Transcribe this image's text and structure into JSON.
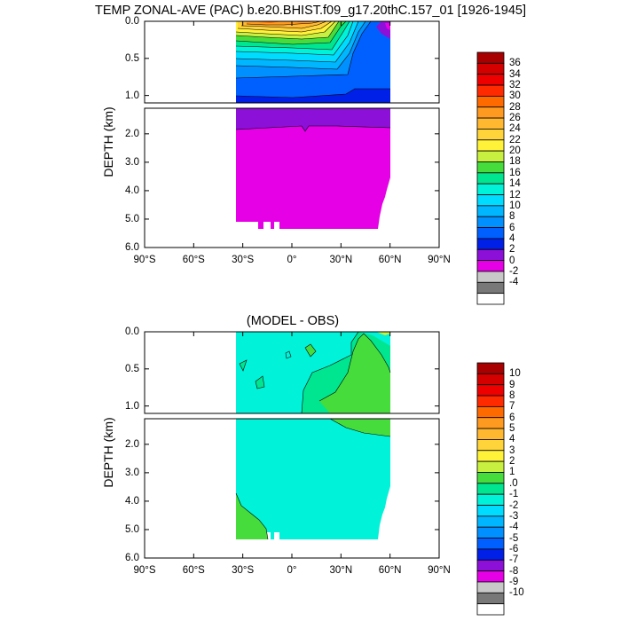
{
  "main_title": "TEMP ZONAL-AVE (PAC) b.e20.BHIST.f09_g17.20thC.157_01 [1926-1945]",
  "diff_title": "(MODEL - OBS)",
  "chart_data": [
    {
      "type": "heatmap",
      "title": "TEMP ZONAL-AVE (PAC) b.e20.BHIST.f09_g17.20thC.157_01 [1926-1945]",
      "ylabel": "DEPTH (km)",
      "xlabel": "",
      "x_ticks": [
        "90°S",
        "60°S",
        "30°S",
        "0°",
        "30°N",
        "60°N",
        "90°N"
      ],
      "x_values": [
        -90,
        -60,
        -30,
        0,
        30,
        60,
        90
      ],
      "xlim": [
        -90,
        90
      ],
      "y_ticks_upper": [
        "0.0",
        "0.5",
        "1.0"
      ],
      "y_ticks_upper_values": [
        0,
        0.5,
        1.0
      ],
      "y_ticks_lower": [
        "2.0",
        "3.0",
        "4.0",
        "5.0",
        "6.0"
      ],
      "y_ticks_lower_values": [
        2,
        3,
        4,
        5,
        6
      ],
      "ylim_upper": [
        0,
        1.1
      ],
      "ylim_lower": [
        1.1,
        6.0
      ],
      "ocean_extent": {
        "lat_south": -33,
        "lat_north": 62,
        "max_depth": 5.35
      },
      "colorbar_labels": [
        "36",
        "34",
        "32",
        "30",
        "28",
        "26",
        "24",
        "22",
        "20",
        "18",
        "16",
        "14",
        "12",
        "10",
        "8",
        "6",
        "4",
        "2",
        "0",
        "-2",
        "-4"
      ],
      "colorbar_colors": [
        "#a80000",
        "#d40000",
        "#ef0000",
        "#ff2a00",
        "#ff6a00",
        "#ff9a20",
        "#ffb830",
        "#ffd43a",
        "#fff238",
        "#c8f040",
        "#46dc3c",
        "#00e690",
        "#00f2d8",
        "#00dcff",
        "#00b6ff",
        "#0090ff",
        "#0060ff",
        "#0020e8",
        "#8c10d8",
        "#e600e6",
        "#c8c8c8",
        "#787878",
        "#ffffff"
      ],
      "profile_by_depth": [
        {
          "depth": 0.0,
          "temp_range": [
            18,
            30
          ]
        },
        {
          "depth": 0.5,
          "temp_range": [
            6,
            10
          ]
        },
        {
          "depth": 1.0,
          "temp_range": [
            2,
            6
          ]
        },
        {
          "depth": 2.0,
          "temp_range": [
            0,
            2
          ]
        },
        {
          "depth": 5.0,
          "temp_range": [
            0,
            2
          ]
        }
      ]
    },
    {
      "type": "heatmap",
      "title": "(MODEL - OBS)",
      "ylabel": "DEPTH (km)",
      "xlabel": "",
      "x_ticks": [
        "90°S",
        "60°S",
        "30°S",
        "0°",
        "30°N",
        "60°N",
        "90°N"
      ],
      "x_values": [
        -90,
        -60,
        -30,
        0,
        30,
        60,
        90
      ],
      "xlim": [
        -90,
        90
      ],
      "y_ticks_upper": [
        "0.0",
        "0.5",
        "1.0"
      ],
      "y_ticks_upper_values": [
        0,
        0.5,
        1.0
      ],
      "y_ticks_lower": [
        "2.0",
        "3.0",
        "4.0",
        "5.0",
        "6.0"
      ],
      "y_ticks_lower_values": [
        2,
        3,
        4,
        5,
        6
      ],
      "ylim_upper": [
        0,
        1.1
      ],
      "ylim_lower": [
        1.1,
        6.0
      ],
      "colorbar_labels": [
        "10",
        "9",
        "8",
        "7",
        "6",
        "5",
        "4",
        "3",
        "2",
        "1",
        ".0",
        "-1",
        "-2",
        "-3",
        "-4",
        "-5",
        "-6",
        "-7",
        "-8",
        "-9",
        "-10"
      ],
      "colorbar_colors": [
        "#a80000",
        "#d40000",
        "#ef0000",
        "#ff2a00",
        "#ff6a00",
        "#ff9a20",
        "#ffb830",
        "#ffd43a",
        "#fff238",
        "#c8f040",
        "#46dc3c",
        "#00e690",
        "#00f2d8",
        "#00dcff",
        "#00b6ff",
        "#0090ff",
        "#0060ff",
        "#0020e8",
        "#8c10d8",
        "#e600e6",
        "#c8c8c8",
        "#787878",
        "#ffffff"
      ],
      "dominant_value_range": [
        -1,
        0
      ],
      "positive_region_value_range": [
        1,
        2
      ]
    }
  ]
}
